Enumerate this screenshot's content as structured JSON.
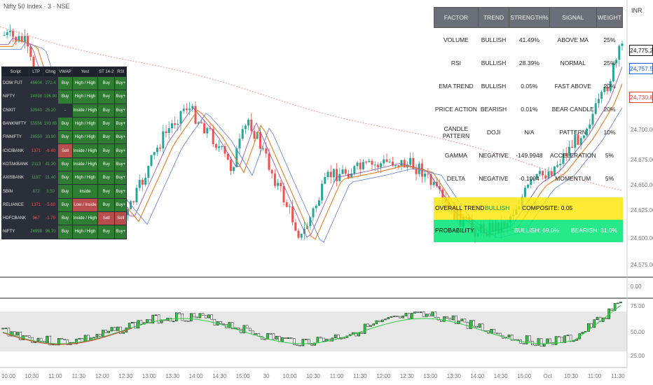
{
  "chart": {
    "title": "Nifty 50 Index · 3 · NSE",
    "currency": "INR",
    "price_ticks": [
      "24,700.00",
      "24,675.00",
      "24,650.00",
      "24,625.00",
      "24,600.00",
      "24,575.00"
    ],
    "price_tags": [
      "24,775.20",
      "24,757.52",
      "24,730.83"
    ],
    "mid_tick": "0.00",
    "rsi_ticks": [
      "75.00",
      "50.00",
      "25.00"
    ],
    "time_labels": [
      "10:00",
      "10:30",
      "11:00",
      "11:30",
      "12:00",
      "12:30",
      "13:00",
      "13:30",
      "14:00",
      "14:30",
      "15:00",
      "30",
      "10:00",
      "10:30",
      "11:00",
      "11:30",
      "12:00",
      "12:30",
      "13:00",
      "13:30",
      "14:00",
      "14:30",
      "15:00",
      "Oct",
      "10:30",
      "11:00",
      "11:30"
    ],
    "colors": {
      "up": "#26a69a",
      "down": "#ef5350",
      "rsi_up": "#2ecc40",
      "rsi_down": "#e53935"
    }
  },
  "scanner": {
    "headers": [
      "Script",
      "LTP",
      "Chng",
      "VWAP",
      "Yest",
      "ST 14-2",
      "RSI"
    ],
    "rows": [
      [
        "DOW FUT",
        "46604",
        "272.4",
        "Buy",
        "High / High",
        "Buy",
        "Buy+"
      ],
      [
        "NIFTY",
        "24998",
        "196.90",
        "Buy",
        "High / High",
        "Buy",
        "Buy+"
      ],
      [
        "CNXIT",
        "32940",
        "25.20",
        "-",
        "Inside / High",
        "Buy",
        "Buy+"
      ],
      [
        "BANKNIFTY",
        "55556",
        "193.65",
        "Buy",
        "High / High",
        "Buy",
        "Buy+"
      ],
      [
        "FINNIFTY",
        "26550",
        "33.90",
        "Buy",
        "High / High",
        "Buy",
        "Buy+"
      ],
      [
        "ICICIBANK",
        "1371",
        "-6.40",
        "Sell",
        "Inside / High",
        "Buy",
        "Buy+"
      ],
      [
        "KOTAKBANK",
        "2113",
        "41.30",
        "Buy",
        "Inside / High",
        "Buy",
        "Buy+"
      ],
      [
        "AXISBANK",
        "1187",
        "21.40",
        "Buy",
        "High / High",
        "Buy",
        "Buy+"
      ],
      [
        "SBIN",
        "872",
        "3.50",
        "Buy",
        "Inside",
        "Buy",
        "Buy+"
      ],
      [
        "RELIANCE",
        "1371",
        "-5.60",
        "Buy",
        "Low / Inside",
        "Buy",
        "Buy+"
      ],
      [
        "HDFCBANK",
        "967",
        "-1.70",
        "Buy",
        "Inside / High",
        "Sell",
        "Sell"
      ],
      [
        "NIFTY",
        "24998",
        "96.70",
        "Buy",
        "High / High",
        "Buy",
        "Buy+"
      ]
    ]
  },
  "factors": {
    "headers": [
      "FACTOR",
      "TREND",
      "STRENGTH%",
      "SIGNAL",
      "WEIGHT"
    ],
    "rows": [
      [
        "VOLUME",
        "BULLISH",
        "41.49%",
        "ABOVE MA",
        "25%"
      ],
      [
        "RSI",
        "BULLISH",
        "28.39%",
        "NORMAL",
        "25%"
      ],
      [
        "EMA TREND",
        "BULLISH",
        "0.05%",
        "FAST ABOVE",
        "20%"
      ],
      [
        "PRICE ACTION",
        "BEARISH",
        "0.01%",
        "BEAR CANDLE",
        "20%"
      ],
      [
        "CANDLE PATTERN",
        "DOJI",
        "N/A",
        "PATTERN",
        "10%"
      ],
      [
        "GAMMA",
        "NEGATIVE",
        "-149.9948",
        "ACCELERATION",
        "5%"
      ],
      [
        "DELTA",
        "NEGATIVE",
        "-0.1004",
        "MOMENTUM",
        "5%"
      ]
    ],
    "overall": {
      "label": "OVERALL TREND",
      "trend": "BULLISH",
      "composite": "COMPOSITE: 0.05"
    },
    "probability": {
      "label": "PROBABILITY",
      "bullish": "BULLISH: 69.0%",
      "bearish": "BEARISH: 31.0%"
    }
  }
}
